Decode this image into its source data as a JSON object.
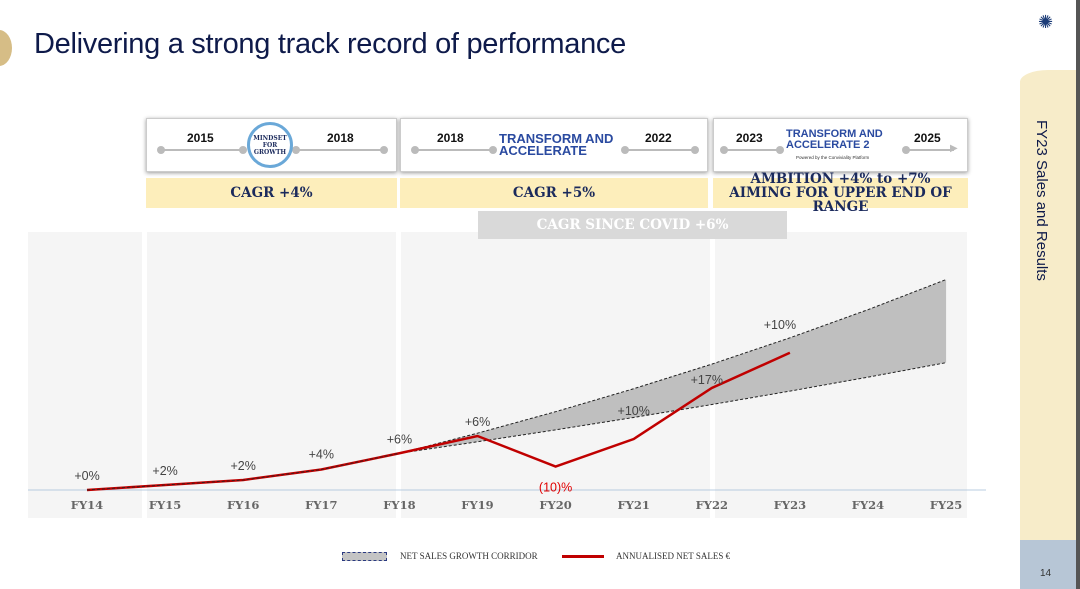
{
  "header": {
    "title": "Delivering a strong track record of performance"
  },
  "sidebar": {
    "label": "FY23 Sales and Results",
    "page_number": "14",
    "logo_icon": "sun-logo-icon"
  },
  "programs": [
    {
      "start": "2015",
      "end": "2018",
      "logo_text": "MINDSET FOR GROWTH",
      "cagr": "CAGR +4%"
    },
    {
      "start": "2018",
      "end": "2022",
      "logo_text": "TRANSFORM AND ACCELERATE",
      "cagr": "CAGR +5%"
    },
    {
      "start": "2023",
      "end": "2025",
      "logo_text": "TRANSFORM AND ACCELERATE 2",
      "logo_sub": "Powered by the Conviviality Platform",
      "cagr": "AMBITION +4% to +7% AIMING FOR UPPER END OF RANGE"
    }
  ],
  "covid_banner": "CAGR SINCE COVID +6%",
  "chart_data": {
    "type": "line",
    "categories": [
      "FY14",
      "FY15",
      "FY16",
      "FY17",
      "FY18",
      "FY19",
      "FY20",
      "FY21",
      "FY22",
      "FY23",
      "FY24",
      "FY25"
    ],
    "series": [
      {
        "name": "ANNUALISED NET SALES €",
        "color": "#c00000",
        "index_values": [
          100,
          102,
          104,
          108.2,
          114.7,
          121.6,
          109.4,
          120.4,
          140.8,
          154.9
        ],
        "data_labels": [
          "+0%",
          "+2%",
          "+2%",
          "+4%",
          "+6%",
          "+6%",
          "(10)%",
          "+10%",
          "+17%",
          "+10%"
        ]
      }
    ],
    "corridor": {
      "name": "NET SALES GROWTH CORRIDOR",
      "color": "#bfbfbf",
      "start": "FY18",
      "lower_growth": 0.04,
      "upper_growth": 0.07
    },
    "negative_label_color": "#e00000",
    "legend_placement": "bottom-center",
    "grid": false
  }
}
